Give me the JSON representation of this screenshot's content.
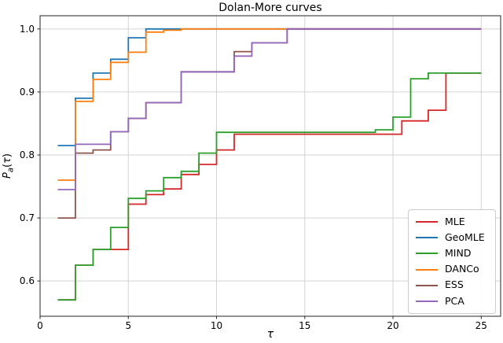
{
  "title": "Dolan-More curves",
  "chart_data": {
    "type": "line",
    "step": "post",
    "title": "Dolan-More curves",
    "xlabel": "τ",
    "ylabel": "Pa(τ)",
    "ylabel_parts": {
      "main": "P",
      "sub": "a",
      "open": "(",
      "tau": "τ",
      "close": ")"
    },
    "xlim": [
      0,
      26.1
    ],
    "ylim": [
      0.544,
      1.021
    ],
    "x_ticks": [
      0,
      5,
      10,
      15,
      20,
      25
    ],
    "y_ticks": [
      0.6,
      0.7,
      0.8,
      0.9,
      1.0
    ],
    "grid": true,
    "legend_position": "lower right",
    "style": {
      "grid_color": "#d3d3d3",
      "spine_color": "#262626",
      "tick_color": "#262626",
      "text_color": "#000000",
      "line_width": 1.8
    },
    "series": [
      {
        "name": "MLE",
        "color": "#d62728",
        "points": [
          [
            1,
            0.57
          ],
          [
            2,
            0.625
          ],
          [
            3,
            0.65
          ],
          [
            5,
            0.722
          ],
          [
            6,
            0.737
          ],
          [
            7,
            0.746
          ],
          [
            8,
            0.769
          ],
          [
            9,
            0.785
          ],
          [
            10,
            0.808
          ],
          [
            11,
            0.833
          ],
          [
            20.5,
            0.854
          ],
          [
            22,
            0.871
          ],
          [
            23,
            0.93
          ],
          [
            25,
            0.93
          ]
        ]
      },
      {
        "name": "GeoMLE",
        "color": "#1f77b4",
        "points": [
          [
            1,
            0.815
          ],
          [
            2,
            0.89
          ],
          [
            3,
            0.93
          ],
          [
            4,
            0.952
          ],
          [
            5,
            0.986
          ],
          [
            6,
            1.0
          ],
          [
            25,
            1.0
          ]
        ]
      },
      {
        "name": "MIND",
        "color": "#2ca02c",
        "points": [
          [
            1,
            0.57
          ],
          [
            2,
            0.625
          ],
          [
            3,
            0.65
          ],
          [
            4,
            0.685
          ],
          [
            5,
            0.731
          ],
          [
            6,
            0.743
          ],
          [
            7,
            0.764
          ],
          [
            8,
            0.774
          ],
          [
            9,
            0.803
          ],
          [
            10,
            0.836
          ],
          [
            19,
            0.84
          ],
          [
            20,
            0.86
          ],
          [
            21,
            0.921
          ],
          [
            22,
            0.93
          ],
          [
            25,
            0.93
          ]
        ]
      },
      {
        "name": "DANCo",
        "color": "#ff7f0e",
        "points": [
          [
            1,
            0.76
          ],
          [
            2,
            0.885
          ],
          [
            3,
            0.92
          ],
          [
            4,
            0.947
          ],
          [
            5,
            0.963
          ],
          [
            6,
            0.995
          ],
          [
            7,
            0.998
          ],
          [
            8,
            1.0
          ],
          [
            25,
            1.0
          ]
        ]
      },
      {
        "name": "ESS",
        "color": "#8c564b",
        "points": [
          [
            1,
            0.7
          ],
          [
            2,
            0.803
          ],
          [
            3,
            0.808
          ],
          [
            4,
            0.837
          ],
          [
            5,
            0.858
          ],
          [
            6,
            0.883
          ],
          [
            8,
            0.932
          ],
          [
            11,
            0.964
          ],
          [
            12,
            0.978
          ],
          [
            14,
            1.0
          ],
          [
            25,
            1.0
          ]
        ]
      },
      {
        "name": "PCA",
        "color": "#9467bd",
        "points": [
          [
            1,
            0.745
          ],
          [
            2,
            0.817
          ],
          [
            4,
            0.837
          ],
          [
            5,
            0.858
          ],
          [
            6,
            0.883
          ],
          [
            8,
            0.932
          ],
          [
            11,
            0.957
          ],
          [
            12,
            0.978
          ],
          [
            14,
            1.0
          ],
          [
            25,
            1.0
          ]
        ]
      }
    ]
  },
  "legend": {
    "items": [
      "MLE",
      "GeoMLE",
      "MIND",
      "DANCo",
      "ESS",
      "PCA"
    ]
  }
}
